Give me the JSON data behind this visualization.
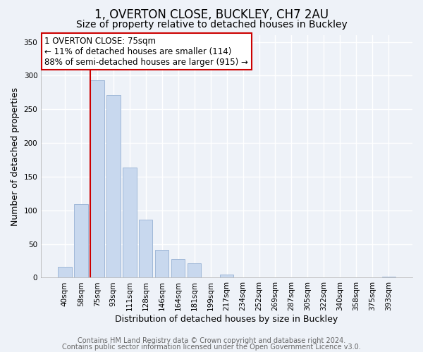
{
  "title": "1, OVERTON CLOSE, BUCKLEY, CH7 2AU",
  "subtitle": "Size of property relative to detached houses in Buckley",
  "xlabel": "Distribution of detached houses by size in Buckley",
  "ylabel": "Number of detached properties",
  "bar_labels": [
    "40sqm",
    "58sqm",
    "75sqm",
    "93sqm",
    "111sqm",
    "128sqm",
    "146sqm",
    "164sqm",
    "181sqm",
    "199sqm",
    "217sqm",
    "234sqm",
    "252sqm",
    "269sqm",
    "287sqm",
    "305sqm",
    "322sqm",
    "340sqm",
    "358sqm",
    "375sqm",
    "393sqm"
  ],
  "bar_values": [
    16,
    109,
    293,
    271,
    163,
    86,
    41,
    28,
    21,
    0,
    5,
    0,
    0,
    0,
    0,
    0,
    0,
    0,
    0,
    0,
    2
  ],
  "bar_color": "#c8d8ee",
  "bar_edge_color": "#a0b8d8",
  "highlight_bar_index": 2,
  "highlight_color": "#cc0000",
  "ylim": [
    0,
    360
  ],
  "yticks": [
    0,
    50,
    100,
    150,
    200,
    250,
    300,
    350
  ],
  "annotation_title": "1 OVERTON CLOSE: 75sqm",
  "annotation_line1": "← 11% of detached houses are smaller (114)",
  "annotation_line2": "88% of semi-detached houses are larger (915) →",
  "footer_line1": "Contains HM Land Registry data © Crown copyright and database right 2024.",
  "footer_line2": "Contains public sector information licensed under the Open Government Licence v3.0.",
  "background_color": "#eef2f8",
  "grid_color": "#ffffff",
  "title_fontsize": 12,
  "subtitle_fontsize": 10,
  "axis_label_fontsize": 9,
  "tick_fontsize": 7.5,
  "annotation_fontsize": 8.5,
  "footer_fontsize": 7
}
